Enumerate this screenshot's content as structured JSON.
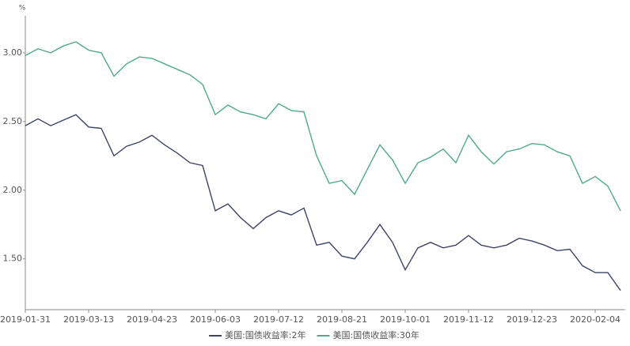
{
  "chart_data": {
    "type": "line",
    "y_axis_label": "%",
    "categories": [
      "2019-01-31",
      null,
      null,
      null,
      null,
      "2019-03-13",
      null,
      null,
      null,
      null,
      "2019-04-23",
      null,
      null,
      null,
      null,
      "2019-06-03",
      null,
      null,
      null,
      null,
      "2019-07-12",
      null,
      null,
      null,
      null,
      "2019-08-21",
      null,
      null,
      null,
      null,
      "2019-10-01",
      null,
      null,
      null,
      null,
      "2019-11-12",
      null,
      null,
      null,
      null,
      "2019-12-23",
      null,
      null,
      null,
      null,
      "2020-02-04",
      null,
      null
    ],
    "series": [
      {
        "name": "美国:国债收益率:2年",
        "color": "#3d4466",
        "values": [
          2.47,
          2.52,
          2.47,
          2.51,
          2.55,
          2.46,
          2.45,
          2.25,
          2.32,
          2.35,
          2.4,
          2.33,
          2.27,
          2.2,
          2.18,
          1.85,
          1.9,
          1.8,
          1.72,
          1.8,
          1.85,
          1.82,
          1.87,
          1.6,
          1.62,
          1.52,
          1.5,
          1.62,
          1.75,
          1.62,
          1.42,
          1.58,
          1.62,
          1.58,
          1.6,
          1.67,
          1.6,
          1.58,
          1.6,
          1.65,
          1.63,
          1.6,
          1.56,
          1.57,
          1.45,
          1.4,
          1.4,
          1.27
        ]
      },
      {
        "name": "美国:国债收益率:30年",
        "color": "#4fa98a",
        "values": [
          2.98,
          3.03,
          3.0,
          3.05,
          3.08,
          3.02,
          3.0,
          2.83,
          2.92,
          2.97,
          2.96,
          2.92,
          2.88,
          2.84,
          2.77,
          2.55,
          2.62,
          2.57,
          2.55,
          2.52,
          2.63,
          2.58,
          2.57,
          2.25,
          2.05,
          2.07,
          1.97,
          2.15,
          2.33,
          2.22,
          2.05,
          2.2,
          2.24,
          2.3,
          2.2,
          2.4,
          2.28,
          2.19,
          2.28,
          2.3,
          2.34,
          2.33,
          2.28,
          2.25,
          2.05,
          2.1,
          2.03,
          1.85
        ]
      }
    ],
    "ylim": [
      1.13,
      3.27
    ],
    "yticks": [
      {
        "value": 1.5,
        "label": "1.50"
      },
      {
        "value": 2.0,
        "label": "2.00"
      },
      {
        "value": 2.5,
        "label": "2.50"
      },
      {
        "value": 3.0,
        "label": "3.00"
      }
    ],
    "grid": false,
    "legend": "bottom"
  }
}
